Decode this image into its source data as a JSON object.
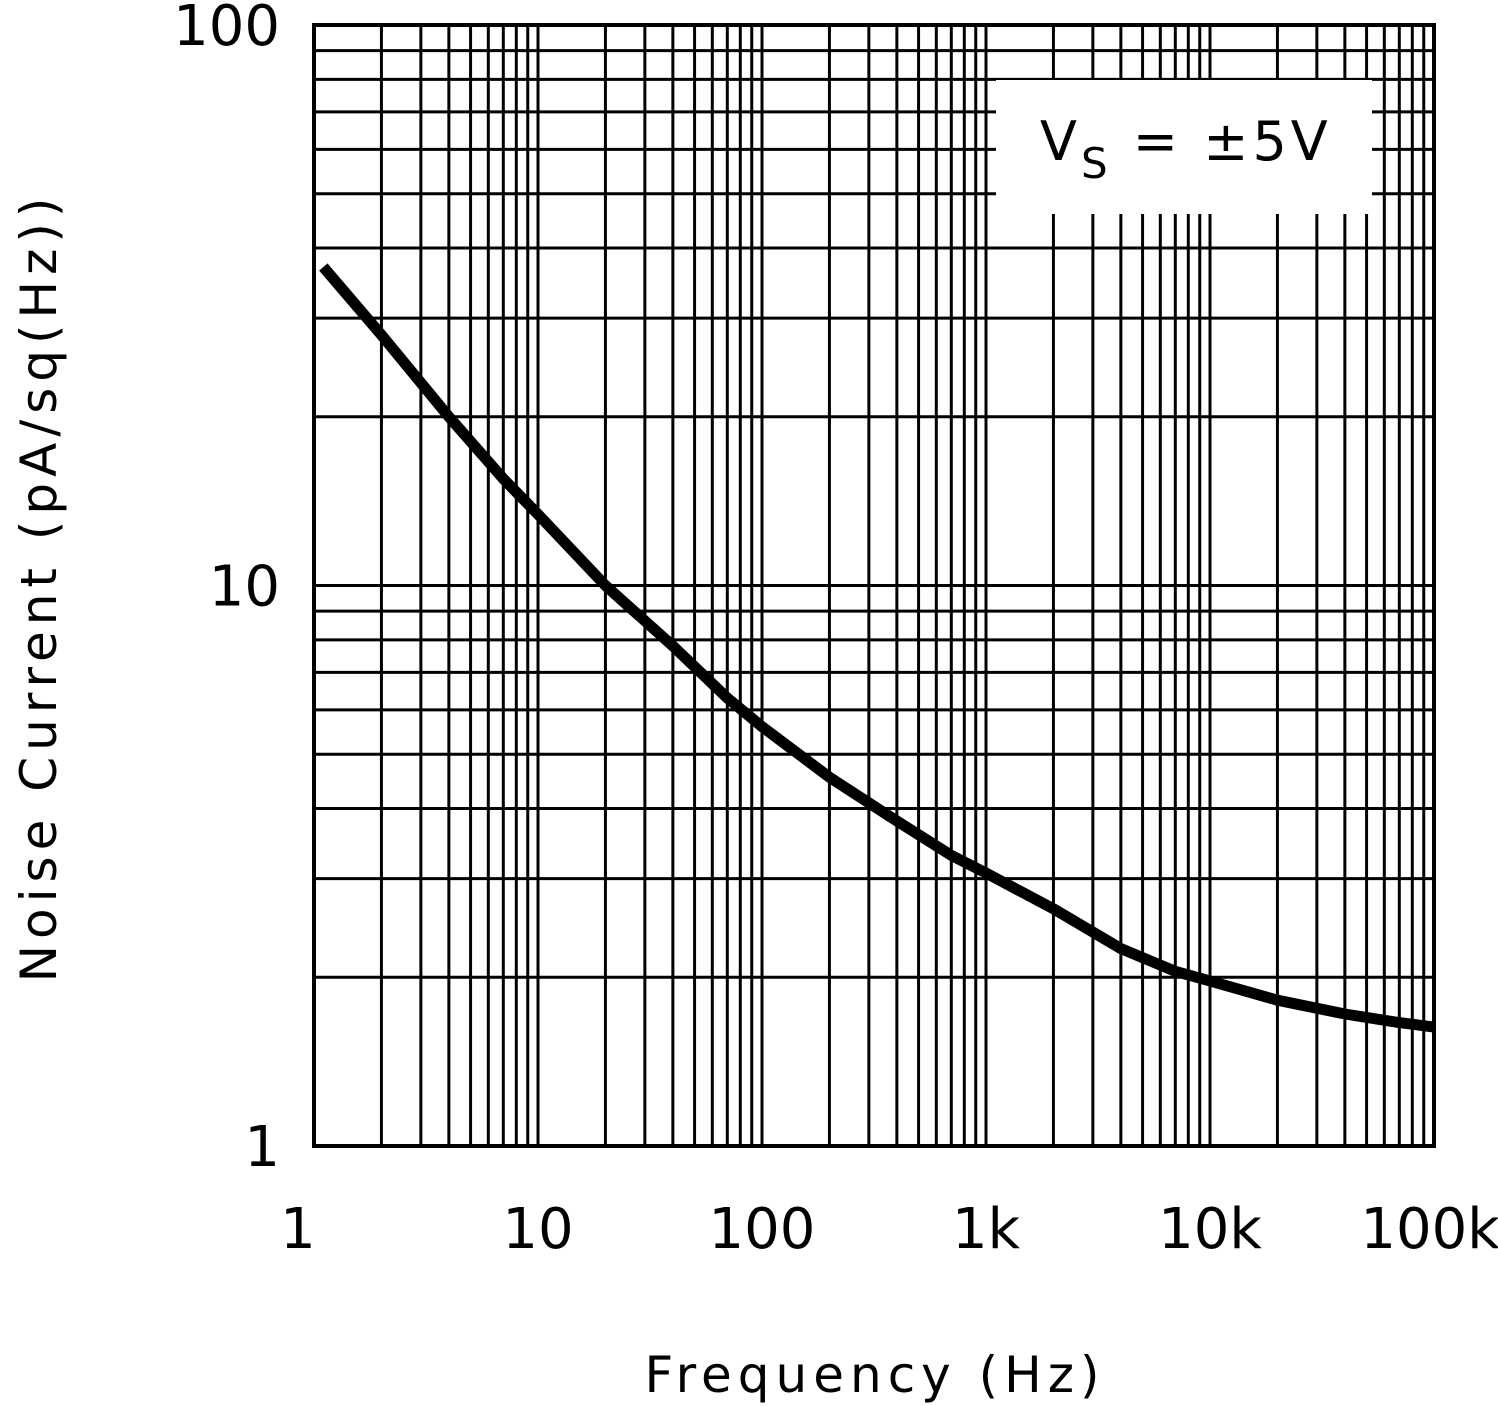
{
  "chart_data": {
    "type": "line",
    "title": "",
    "xlabel": "Frequency (Hz)",
    "ylabel": "Noise Current (pA/sq(Hz))",
    "xscale": "log",
    "yscale": "log",
    "xlim": [
      1,
      100000
    ],
    "ylim": [
      1,
      100
    ],
    "grid": true,
    "x_tick_labels": [
      "1",
      "10",
      "100",
      "1k",
      "10k",
      "100k"
    ],
    "y_tick_labels": [
      "1",
      "10",
      "100"
    ],
    "annotation": {
      "main": "V",
      "sub": "S",
      "rest": " = ±5V",
      "placement": "top-right"
    },
    "series": [
      {
        "x": [
          1.1,
          2,
          4,
          7,
          10,
          20,
          40,
          70,
          100,
          200,
          400,
          700,
          1000,
          2000,
          4000,
          7000,
          10000,
          20000,
          40000,
          70000,
          100000
        ],
        "y": [
          37,
          28,
          20,
          15.5,
          13.4,
          10,
          7.8,
          6.3,
          5.6,
          4.55,
          3.8,
          3.3,
          3.07,
          2.65,
          2.25,
          2.05,
          1.97,
          1.82,
          1.72,
          1.66,
          1.63
        ]
      }
    ],
    "line_color": "#000000"
  }
}
